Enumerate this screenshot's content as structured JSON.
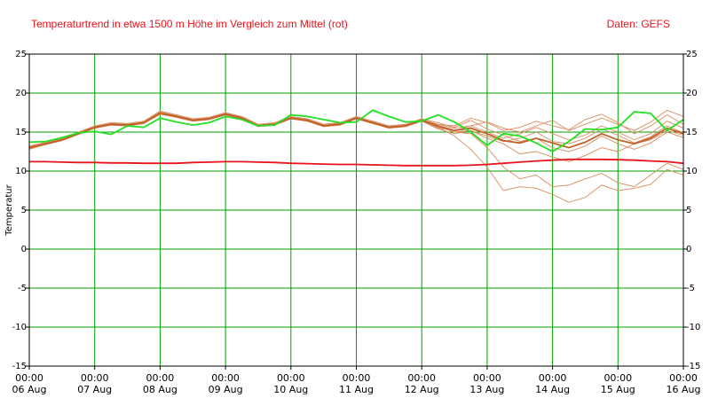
{
  "chart_data": {
    "type": "line",
    "title": "Temperaturtrend in etwa 1500 m Höhe im Vergleich zum Mittel (rot)",
    "source": "Daten: GEFS",
    "y_label": "Temperatur",
    "x": [
      0,
      6,
      12,
      18,
      24,
      30,
      36,
      42,
      48,
      54,
      60,
      66,
      72,
      78,
      84,
      90,
      96,
      102,
      108,
      114,
      120,
      126,
      132,
      138,
      144,
      150,
      156,
      162,
      168,
      174,
      180,
      186,
      192,
      198,
      204,
      210,
      216,
      222,
      228,
      234,
      240
    ],
    "xlim": [
      0,
      240
    ],
    "xticks": [
      {
        "value": 0,
        "label": "00:00\n06 Aug"
      },
      {
        "value": 24,
        "label": "00:00\n07 Aug"
      },
      {
        "value": 48,
        "label": "00:00\n08 Aug"
      },
      {
        "value": 72,
        "label": "00:00\n09 Aug"
      },
      {
        "value": 96,
        "label": "00:00\n10 Aug"
      },
      {
        "value": 120,
        "label": "00:00\n11 Aug"
      },
      {
        "value": 144,
        "label": "00:00\n12 Aug"
      },
      {
        "value": 168,
        "label": "00:00\n13 Aug"
      },
      {
        "value": 192,
        "label": "00:00\n14 Aug"
      },
      {
        "value": 216,
        "label": "00:00\n15 Aug"
      },
      {
        "value": 240,
        "label": "00:00\n16 Aug"
      }
    ],
    "ylim": [
      -15,
      25
    ],
    "yticks": [
      -15,
      -10,
      -5,
      0,
      5,
      10,
      15,
      20,
      25
    ],
    "grid": true,
    "series": [
      {
        "color": "#d98c5f",
        "values": [
          13.0,
          13.5,
          14.0,
          14.8,
          15.6,
          16.0,
          15.9,
          16.2,
          17.5,
          17.0,
          16.5,
          16.7,
          17.3,
          16.8,
          15.8,
          16.0,
          16.8,
          16.5,
          15.8,
          16.0,
          16.8,
          16.2,
          15.6,
          15.8,
          16.5,
          16.0,
          15.5,
          15.8,
          16.3,
          15.5,
          15.0,
          15.8,
          16.5,
          15.2,
          16.0,
          16.8,
          16.0,
          15.2,
          16.3,
          17.8,
          17.0
        ]
      },
      {
        "color": "#d98c5f",
        "values": [
          12.8,
          13.4,
          13.9,
          14.7,
          15.5,
          15.9,
          15.8,
          16.1,
          17.3,
          16.9,
          16.4,
          16.6,
          17.2,
          16.7,
          15.7,
          15.9,
          16.7,
          16.4,
          15.7,
          15.9,
          16.7,
          16.1,
          15.5,
          15.7,
          16.4,
          15.6,
          14.5,
          12.8,
          10.5,
          7.5,
          8.0,
          7.8,
          7.0,
          6.0,
          6.6,
          8.2,
          7.5,
          7.8,
          8.3,
          10.2,
          9.5
        ]
      },
      {
        "color": "#d98c5f",
        "values": [
          13.1,
          13.6,
          14.1,
          14.9,
          15.7,
          16.1,
          16.0,
          16.3,
          17.6,
          17.1,
          16.6,
          16.8,
          17.4,
          16.9,
          15.9,
          16.1,
          16.9,
          16.6,
          15.9,
          16.1,
          16.9,
          16.3,
          15.7,
          15.9,
          16.6,
          15.8,
          15.0,
          14.8,
          13.0,
          10.5,
          9.0,
          9.5,
          8.0,
          8.2,
          9.0,
          9.7,
          8.5,
          8.0,
          9.5,
          11.0,
          10.2
        ]
      },
      {
        "color": "#d98c5f",
        "values": [
          12.9,
          13.5,
          14.0,
          14.8,
          15.6,
          16.0,
          15.9,
          16.2,
          17.4,
          17.0,
          16.5,
          16.7,
          17.3,
          16.8,
          15.8,
          16.0,
          16.8,
          16.5,
          15.8,
          16.0,
          16.8,
          16.2,
          15.6,
          15.8,
          16.5,
          15.5,
          15.2,
          15.8,
          15.0,
          14.2,
          14.8,
          15.6,
          14.8,
          14.0,
          14.6,
          15.8,
          15.0,
          14.0,
          14.8,
          16.4,
          15.5
        ]
      },
      {
        "color": "#d98c5f",
        "values": [
          13.2,
          13.7,
          14.2,
          15.0,
          15.8,
          16.2,
          16.1,
          16.4,
          17.7,
          17.2,
          16.7,
          16.9,
          17.5,
          17.0,
          16.0,
          16.2,
          17.0,
          16.7,
          16.0,
          16.2,
          17.0,
          16.4,
          15.8,
          16.0,
          16.7,
          16.2,
          15.6,
          16.5,
          15.4,
          14.6,
          13.8,
          14.2,
          13.0,
          12.5,
          13.2,
          14.5,
          13.5,
          12.8,
          13.6,
          15.0,
          14.3
        ]
      },
      {
        "color": "#d98c5f",
        "values": [
          13.0,
          13.4,
          14.0,
          14.7,
          15.5,
          15.9,
          15.8,
          16.1,
          17.4,
          16.9,
          16.4,
          16.6,
          17.2,
          16.7,
          15.7,
          15.9,
          16.7,
          16.4,
          15.7,
          15.9,
          16.7,
          16.1,
          15.5,
          15.7,
          16.4,
          15.7,
          15.0,
          15.2,
          14.2,
          13.5,
          12.2,
          12.5,
          11.8,
          11.2,
          12.0,
          13.0,
          12.5,
          13.5,
          14.0,
          15.2,
          14.6
        ]
      },
      {
        "color": "#d98c5f",
        "values": [
          13.1,
          13.6,
          14.1,
          14.9,
          15.7,
          16.1,
          16.0,
          16.3,
          17.5,
          17.1,
          16.6,
          16.8,
          17.4,
          16.9,
          15.9,
          16.1,
          16.9,
          16.6,
          15.9,
          16.1,
          16.9,
          16.3,
          15.7,
          15.9,
          16.6,
          16.0,
          15.8,
          16.8,
          16.2,
          15.2,
          15.6,
          16.4,
          15.8,
          15.3,
          16.6,
          17.3,
          16.2,
          14.8,
          15.8,
          17.2,
          16.0
        ]
      },
      {
        "color": "#d98c5f",
        "values": [
          12.9,
          13.4,
          13.9,
          14.7,
          15.5,
          15.9,
          15.8,
          16.1,
          17.3,
          16.9,
          16.4,
          16.6,
          17.2,
          16.7,
          15.7,
          15.9,
          16.7,
          16.4,
          15.7,
          15.9,
          16.7,
          16.1,
          15.5,
          15.7,
          16.4,
          15.4,
          14.8,
          15.2,
          14.5,
          13.8,
          14.2,
          15.0,
          13.8,
          13.5,
          14.2,
          15.4,
          14.6,
          13.6,
          14.4,
          15.8,
          14.9
        ]
      },
      {
        "color": "#c0602a",
        "values": [
          13.0,
          13.5,
          14.0,
          14.8,
          15.6,
          16.0,
          15.9,
          16.2,
          17.4,
          17.0,
          16.5,
          16.7,
          17.3,
          16.8,
          15.8,
          16.0,
          16.8,
          16.5,
          15.8,
          16.0,
          16.8,
          16.2,
          15.6,
          15.8,
          16.5,
          15.8,
          15.2,
          15.5,
          14.8,
          13.9,
          13.6,
          14.2,
          13.6,
          13.0,
          13.7,
          14.8,
          14.0,
          13.5,
          14.2,
          15.5,
          14.8
        ]
      },
      {
        "color": "#22e022",
        "values": [
          13.7,
          13.8,
          14.3,
          14.9,
          15.1,
          14.7,
          15.8,
          15.6,
          16.8,
          16.3,
          15.9,
          16.2,
          17.0,
          16.6,
          15.8,
          15.9,
          17.2,
          17.0,
          16.6,
          16.2,
          16.3,
          17.8,
          17.0,
          16.3,
          16.4,
          17.2,
          16.3,
          15.0,
          13.3,
          14.8,
          14.5,
          13.6,
          12.5,
          13.8,
          15.4,
          15.3,
          15.6,
          17.6,
          17.4,
          15.2,
          16.6
        ]
      },
      {
        "color": "#e8141c",
        "values": [
          11.2,
          11.2,
          11.15,
          11.1,
          11.1,
          11.05,
          11.05,
          11.0,
          11.0,
          11.0,
          11.1,
          11.15,
          11.2,
          11.2,
          11.15,
          11.1,
          11.0,
          10.95,
          10.9,
          10.85,
          10.85,
          10.8,
          10.75,
          10.7,
          10.7,
          10.7,
          10.7,
          10.75,
          10.85,
          11.0,
          11.15,
          11.3,
          11.4,
          11.5,
          11.5,
          11.5,
          11.45,
          11.4,
          11.3,
          11.2,
          11.0
        ]
      }
    ]
  }
}
